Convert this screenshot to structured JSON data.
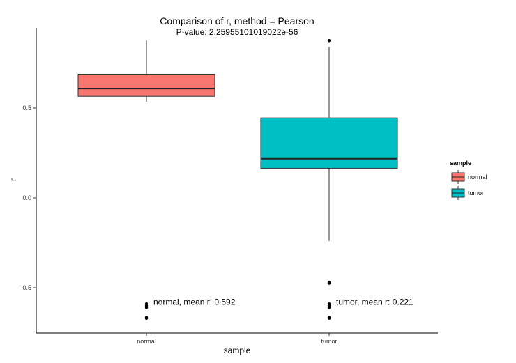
{
  "chart_data": {
    "type": "boxplot",
    "title": "Comparison of r, method =  Pearson",
    "subtitle": "P-value: 2.25955101019022e-56",
    "xlabel": "sample",
    "ylabel": "r",
    "categories": [
      "normal",
      "tumor"
    ],
    "ylim": [
      -0.75,
      0.95
    ],
    "yticks": [
      -0.5,
      0.0,
      0.5
    ],
    "ytick_labels": [
      "-0.5",
      "0.0",
      "0.5"
    ],
    "grid": false,
    "legend": {
      "title": "sample",
      "position": "right",
      "items": [
        {
          "label": "normal",
          "color": "#F8766D"
        },
        {
          "label": "tumor",
          "color": "#00BFC4"
        }
      ]
    },
    "series": [
      {
        "category": "normal",
        "color": "#F8766D",
        "whisker_low": 0.535,
        "q1": 0.565,
        "median": 0.608,
        "q3": 0.688,
        "whisker_high": 0.875,
        "outliers": [
          -0.59,
          -0.6,
          -0.61,
          -0.665,
          -0.67
        ]
      },
      {
        "category": "tumor",
        "color": "#00BFC4",
        "whisker_low": -0.24,
        "q1": 0.165,
        "median": 0.218,
        "q3": 0.445,
        "whisker_high": 0.84,
        "outliers": [
          0.875,
          -0.47,
          -0.475,
          -0.59,
          -0.6,
          -0.61,
          -0.665,
          -0.67
        ]
      }
    ],
    "annotations": [
      {
        "text": "normal, mean r: 0.592",
        "category": "normal",
        "y": -0.58
      },
      {
        "text": "tumor, mean r: 0.221",
        "category": "tumor",
        "y": -0.58
      }
    ]
  }
}
